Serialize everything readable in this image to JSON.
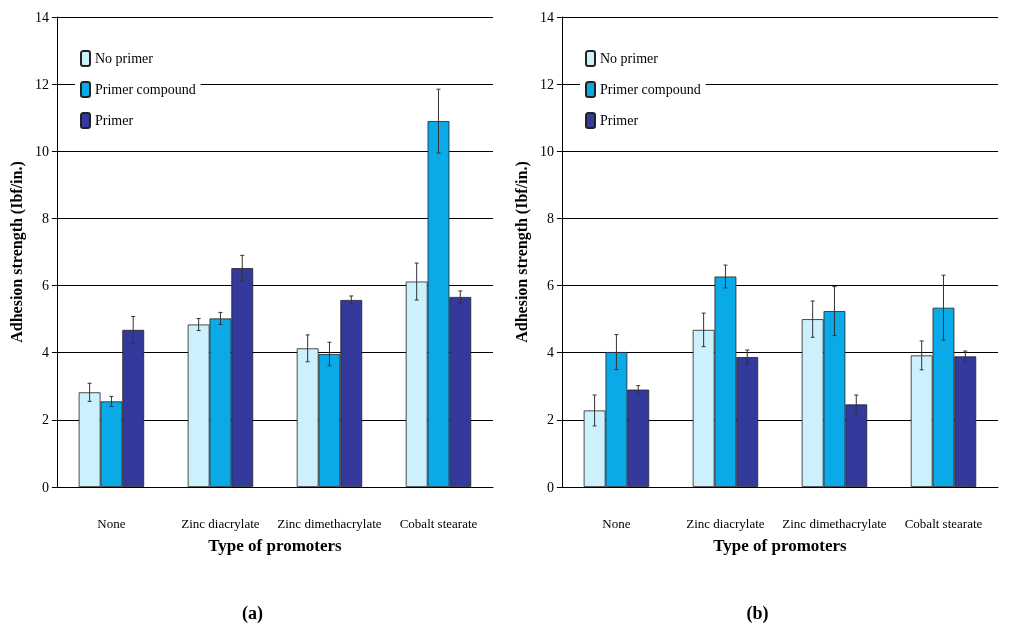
{
  "chart_data": [
    {
      "type": "bar",
      "xlabel": "Type of promoters",
      "ylabel": "Adhesion strength (Ibf/in.)",
      "annotations": [
        "(a)"
      ],
      "categories": [
        "None",
        "Zinc diacrylate",
        "Zinc dimethacrylate",
        "Cobalt stearate"
      ],
      "ylim": [
        0,
        14
      ],
      "yticks": [
        0,
        2,
        4,
        6,
        8,
        10,
        12,
        14
      ],
      "grid": "y",
      "legend": "top left",
      "series": [
        {
          "name": "No primer",
          "color": "#ccf0fc",
          "values": [
            2.82,
            4.84,
            4.13,
            6.12
          ],
          "errors": [
            0.27,
            0.18,
            0.4,
            0.55
          ]
        },
        {
          "name": "Primer compound",
          "color": "#0aaae8",
          "values": [
            2.55,
            5.02,
            3.96,
            10.9
          ],
          "errors": [
            0.15,
            0.18,
            0.35,
            0.95
          ]
        },
        {
          "name": "Primer",
          "color": "#34399c",
          "values": [
            4.68,
            6.52,
            5.57,
            5.66
          ],
          "errors": [
            0.4,
            0.38,
            0.12,
            0.18
          ]
        }
      ]
    },
    {
      "type": "bar",
      "xlabel": "Type of promoters",
      "ylabel": "Adhesion strength (Ibf/in.)",
      "annotations": [
        "(b)"
      ],
      "categories": [
        "None",
        "Zinc diacrylate",
        "Zinc dimethacrylate",
        "Cobalt stearate"
      ],
      "ylim": [
        0,
        14
      ],
      "yticks": [
        0,
        2,
        4,
        6,
        8,
        10,
        12,
        14
      ],
      "grid": "y",
      "legend": "top left",
      "series": [
        {
          "name": "No primer",
          "color": "#ccf0fc",
          "values": [
            2.28,
            4.68,
            5.0,
            3.92
          ],
          "errors": [
            0.46,
            0.5,
            0.54,
            0.43
          ]
        },
        {
          "name": "Primer compound",
          "color": "#0aaae8",
          "values": [
            4.02,
            6.27,
            5.24,
            5.34
          ],
          "errors": [
            0.52,
            0.34,
            0.73,
            0.97
          ]
        },
        {
          "name": "Primer",
          "color": "#34399c",
          "values": [
            2.9,
            3.87,
            2.46,
            3.89
          ],
          "errors": [
            0.12,
            0.21,
            0.28,
            0.16
          ]
        }
      ]
    }
  ]
}
